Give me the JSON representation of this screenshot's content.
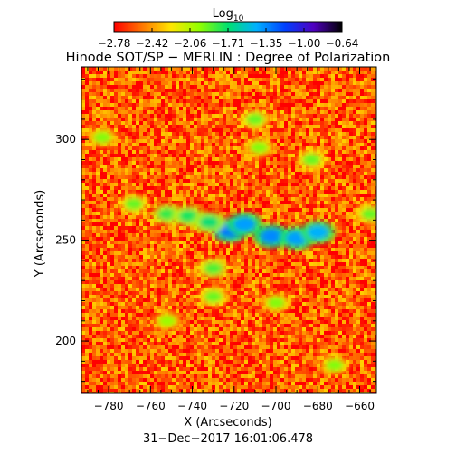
{
  "chart_data": {
    "type": "heatmap",
    "title": "Hinode SOT/SP − MERLIN : Degree of Polarization",
    "xlabel": "X (Arcseconds)",
    "ylabel": "Y (Arcseconds)",
    "xlim": [
      -793,
      -652
    ],
    "ylim": [
      174,
      336
    ],
    "x_ticks": [
      -780,
      -760,
      -740,
      -720,
      -700,
      -680,
      -660
    ],
    "y_ticks": [
      200,
      250,
      300
    ],
    "x_tick_labels": [
      "−780",
      "−760",
      "−740",
      "−720",
      "−700",
      "−680",
      "−660"
    ],
    "y_tick_labels": [
      "200",
      "250",
      "300"
    ],
    "colorbar": {
      "label_base": "Log",
      "label_sub": "10",
      "range": [
        -2.78,
        -0.64
      ],
      "tick_labels": [
        "−2.78",
        "−2.42",
        "−2.06",
        "−1.71",
        "−1.35",
        "−1.00",
        "−0.64"
      ],
      "colormap": [
        "#ff0000",
        "#ff7800",
        "#ffe600",
        "#90ff00",
        "#00e070",
        "#00b0ff",
        "#0040ff",
        "#5000c0",
        "#000000"
      ]
    },
    "timestamp": "31−Dec−2017 16:01:06.478",
    "background_level": -2.6,
    "features": [
      {
        "x": -722,
        "y": 255,
        "level": -1.3
      },
      {
        "x": -715,
        "y": 258,
        "level": -1.4
      },
      {
        "x": -702,
        "y": 252,
        "level": -1.35
      },
      {
        "x": -690,
        "y": 251,
        "level": -1.4
      },
      {
        "x": -680,
        "y": 254,
        "level": -1.45
      },
      {
        "x": -752,
        "y": 263,
        "level": -1.8
      },
      {
        "x": -742,
        "y": 262,
        "level": -1.75
      },
      {
        "x": -732,
        "y": 259,
        "level": -1.7
      },
      {
        "x": -768,
        "y": 268,
        "level": -1.9
      },
      {
        "x": -730,
        "y": 236,
        "level": -1.85
      },
      {
        "x": -730,
        "y": 222,
        "level": -1.9
      },
      {
        "x": -710,
        "y": 310,
        "level": -1.9
      },
      {
        "x": -708,
        "y": 296,
        "level": -1.95
      },
      {
        "x": -683,
        "y": 290,
        "level": -1.9
      },
      {
        "x": -783,
        "y": 301,
        "level": -1.95
      },
      {
        "x": -655,
        "y": 263,
        "level": -1.9
      },
      {
        "x": -700,
        "y": 219,
        "level": -1.95
      },
      {
        "x": -672,
        "y": 188,
        "level": -1.95
      },
      {
        "x": -752,
        "y": 210,
        "level": -2.0
      }
    ]
  }
}
